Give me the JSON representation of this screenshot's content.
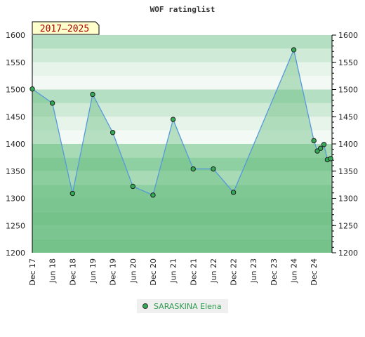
{
  "chart_data": {
    "type": "area",
    "title": "WOF ratinglist",
    "badge": "2017–2025",
    "ylim": [
      1200,
      1600
    ],
    "y_ticks": [
      1200,
      1250,
      1300,
      1350,
      1400,
      1450,
      1500,
      1550,
      1600
    ],
    "x_labels": [
      "Dec 17",
      "Jun 18",
      "Dec 18",
      "Jun 19",
      "Dec 19",
      "Jun 20",
      "Dec 20",
      "Jun 21",
      "Dec 21",
      "Jun 22",
      "Dec 22",
      "Jun 23",
      "Dec 23",
      "Jun 24",
      "Dec 24"
    ],
    "x_label_positions": [
      0,
      1,
      2,
      3,
      4,
      5,
      6,
      7,
      8,
      9,
      10,
      11,
      12,
      13,
      14
    ],
    "xlim": [
      0,
      14.9
    ],
    "series": [
      {
        "name": "SARASKINA Elena",
        "x": [
          0,
          1,
          2,
          3,
          4,
          5,
          6,
          7,
          8,
          9,
          10,
          13,
          14,
          14.17,
          14.33,
          14.5,
          14.67,
          14.83
        ],
        "values": [
          1501,
          1475,
          1309,
          1491,
          1421,
          1322,
          1306,
          1445,
          1354,
          1354,
          1311,
          1573,
          1406,
          1387,
          1392,
          1399,
          1371,
          1373
        ]
      }
    ],
    "colors": {
      "line": "#5599dd",
      "fill": "#6cbf83",
      "marker": "#33aa55"
    }
  }
}
